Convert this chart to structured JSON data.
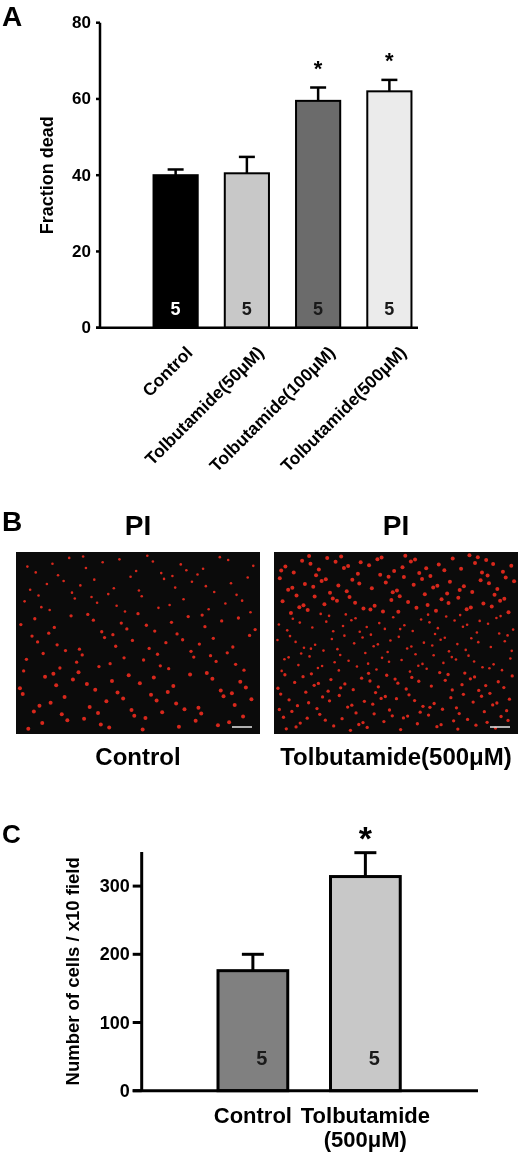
{
  "chart_data": [
    {
      "type": "bar",
      "title": "A",
      "ylabel": "Fraction dead",
      "categories": [
        "Control",
        "Tolbutamide(50μM)",
        "Tolbutamide(100μM)",
        "Tolbutamide(500μM)"
      ],
      "values": [
        40,
        40.5,
        59.5,
        62
      ],
      "colors": [
        "#000000",
        "#c8c8c8",
        "#6b6b6b",
        "#ebebeb"
      ],
      "errors": [
        [
          40,
          41.5
        ],
        [
          40.5,
          44.8
        ],
        [
          59.5,
          63
        ],
        [
          62,
          65
        ]
      ],
      "ylim": [
        0,
        80
      ],
      "yticks": [
        0,
        20,
        40,
        60,
        80
      ],
      "annotations": [
        "5",
        "5",
        "5",
        "5",
        "*",
        "*"
      ]
    },
    {
      "type": "other",
      "title": "B",
      "categories": [
        "Control",
        "Tolbutamide(500μM)"
      ],
      "annotations": [
        "PI",
        "PI"
      ]
    },
    {
      "type": "bar",
      "title": "C",
      "ylabel": "Number of cells / x10 field",
      "categories": [
        "Control",
        "Tolbutamide\n(500μM)"
      ],
      "values": [
        176,
        314
      ],
      "colors": [
        "#808080",
        "#c8c8c8"
      ],
      "errors": [
        [
          176,
          200
        ],
        [
          314,
          349
        ]
      ],
      "ylim": [
        0,
        350
      ],
      "yticks": [
        0,
        100,
        200,
        300
      ],
      "annotations": [
        "5",
        "5",
        "*"
      ]
    }
  ]
}
